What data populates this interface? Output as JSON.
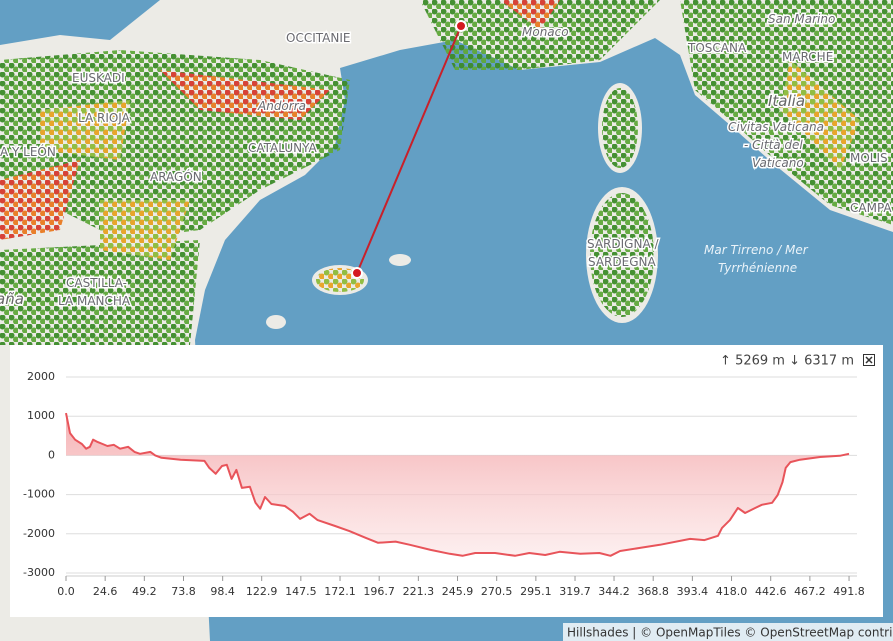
{
  "map_labels": [
    "OCCITANIE",
    "Monaco",
    "San Marino",
    "EUSKADI",
    "Andorra",
    "TOSCANA",
    "MARCHE",
    "LA RIOJA",
    "Italia",
    "Civitas Vaticana",
    "- Città del",
    "Vaticano",
    "A Y LEÓN",
    "CATALUNYA",
    "ARAGÓN",
    "MOLIS",
    "CAMPA",
    "SARDIGNA /",
    "SARDEGNA",
    "Mar Tirreno / Mer",
    "Tyrrhénienne",
    "CASTILLA-",
    "LA MANCHA",
    "aña"
  ],
  "elevation_stats": "↑ 5269 m ↓ 6317 m",
  "attribution": "Hillshades | © OpenMapTiles © OpenStreetMap contrib",
  "chart_data": {
    "type": "area",
    "color": "#e8545a",
    "x": [
      0,
      2.5,
      5.7,
      10,
      12.6,
      15,
      17,
      20,
      23,
      26,
      30,
      34,
      39,
      43,
      46.5,
      53,
      56,
      60,
      72,
      87,
      90,
      94,
      98,
      101,
      104,
      107,
      110.5,
      115.5,
      119,
      122,
      125,
      129,
      137.5,
      142.6,
      147,
      153,
      158,
      169,
      178,
      188,
      196,
      207,
      216,
      229,
      241,
      249,
      257,
      269.5,
      282,
      291,
      301,
      310,
      323,
      335,
      342,
      348,
      360.5,
      373,
      392,
      401,
      409.5,
      412,
      417,
      422,
      426.5,
      433,
      437,
      443.5,
      447,
      450,
      452,
      455,
      461,
      473.6,
      486,
      491.8
    ],
    "values": [
      1080,
      570,
      400,
      290,
      170,
      220,
      400,
      340,
      290,
      240,
      270,
      170,
      220,
      90,
      40,
      90,
      0,
      -60,
      -110,
      -140,
      -320,
      -470,
      -270,
      -240,
      -600,
      -370,
      -830,
      -800,
      -1210,
      -1360,
      -1060,
      -1240,
      -1290,
      -1440,
      -1620,
      -1490,
      -1650,
      -1800,
      -1930,
      -2100,
      -2230,
      -2200,
      -2280,
      -2410,
      -2510,
      -2560,
      -2490,
      -2490,
      -2560,
      -2490,
      -2540,
      -2460,
      -2510,
      -2490,
      -2560,
      -2440,
      -2360,
      -2280,
      -2130,
      -2160,
      -2050,
      -1850,
      -1650,
      -1340,
      -1470,
      -1340,
      -1260,
      -1210,
      -1010,
      -680,
      -320,
      -170,
      -110,
      -40,
      -10,
      40
    ],
    "xlim": [
      0,
      496.8
    ],
    "ylim": [
      -3000,
      2000
    ],
    "xticks": [
      {
        "value": 0,
        "label": "0.0"
      },
      24.6,
      49.2,
      73.8,
      98.4,
      122.9,
      147.5,
      172.1,
      196.7,
      221.3,
      245.9,
      270.5,
      295.1,
      319.7,
      344.2,
      368.8,
      393.4,
      {
        "value": 418,
        "label": "418.0"
      },
      442.6,
      467.2,
      491.8
    ],
    "yticks": [
      -3000,
      -2000,
      -1000,
      0,
      1000,
      2000
    ],
    "grid": true
  }
}
